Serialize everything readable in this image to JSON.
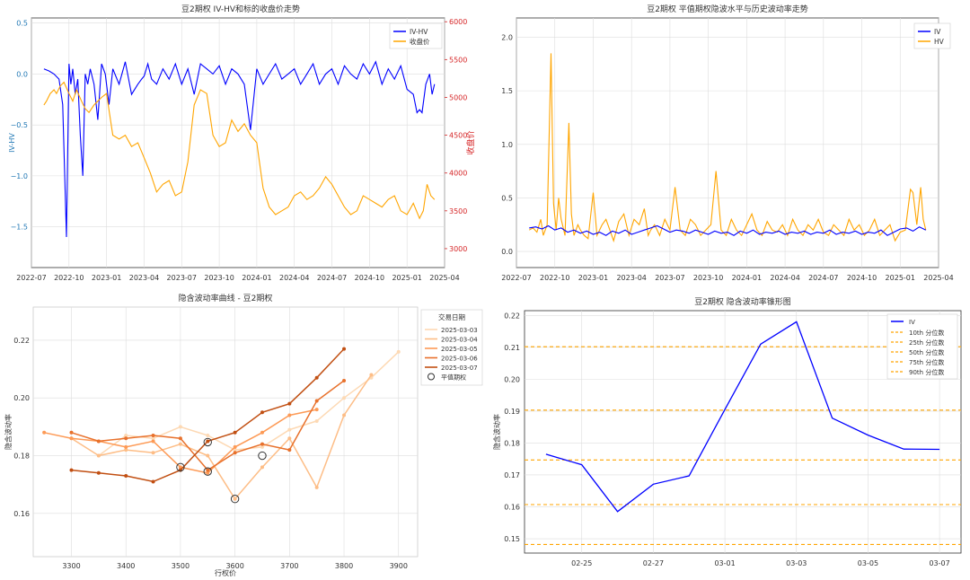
{
  "chart_data": [
    {
      "id": "iv_hv_close",
      "type": "line",
      "title": "豆2期权 IV-HV和标的收盘价走势",
      "ylabel_left": "IV-HV",
      "ylabel_right": "收盘价",
      "x_ticks": [
        "2022-07",
        "2022-10",
        "2023-01",
        "2023-04",
        "2023-07",
        "2023-10",
        "2024-01",
        "2024-04",
        "2024-07",
        "2024-10",
        "2025-01",
        "2025-04"
      ],
      "x_range": [
        0,
        33
      ],
      "y_left_ticks": [
        0.5,
        0.0,
        -0.5,
        -1.0,
        -1.5
      ],
      "y_left_tick_labels": [
        "0.5",
        "0.0",
        "−0.5",
        "−1.0",
        "−1.5"
      ],
      "y_left_range": [
        -1.9,
        0.55
      ],
      "y_right_ticks": [
        6000,
        5500,
        5000,
        4500,
        4000,
        3500,
        3000
      ],
      "y_right_tick_labels": [
        "6000",
        "5500",
        "5000",
        "4500",
        "4000",
        "3500",
        "3000"
      ],
      "y_right_range": [
        2750,
        6050
      ],
      "colors": {
        "left": "#1f77b4",
        "right": "#d62728"
      },
      "legend": [
        {
          "label": "IV-HV",
          "color": "#0000ff"
        },
        {
          "label": "收盘价",
          "color": "#ffa500"
        }
      ],
      "series": [
        {
          "name": "IV-HV",
          "axis": "left",
          "color": "#0000ff",
          "x": [
            1.0,
            1.4,
            1.8,
            2.2,
            2.5,
            2.8,
            3.0,
            3.15,
            3.3,
            3.5,
            3.7,
            3.9,
            4.1,
            4.3,
            4.5,
            4.7,
            5.0,
            5.3,
            5.6,
            5.9,
            6.2,
            6.5,
            7.0,
            7.5,
            8.0,
            8.5,
            8.8,
            9.0,
            9.3,
            9.6,
            10.0,
            10.5,
            11.0,
            11.5,
            12.0,
            12.5,
            13.0,
            13.5,
            14.0,
            14.5,
            15.0,
            15.5,
            16.0,
            16.5,
            17.0,
            17.5,
            18.0,
            18.5,
            19.0,
            19.5,
            20.0,
            20.5,
            21.0,
            21.5,
            22.0,
            22.5,
            23.0,
            23.5,
            24.0,
            24.5,
            25.0,
            25.5,
            26.0,
            26.5,
            27.0,
            27.5,
            28.0,
            28.5,
            29.0,
            29.5,
            30.0,
            30.5,
            30.8,
            31.0,
            31.2,
            31.5,
            31.8,
            32.0,
            32.2
          ],
          "y": [
            0.05,
            0.03,
            0.0,
            -0.05,
            -0.3,
            -1.6,
            0.1,
            -0.1,
            0.05,
            -0.2,
            -0.05,
            -0.6,
            -1.0,
            0.0,
            -0.1,
            0.05,
            -0.1,
            -0.45,
            0.1,
            0.0,
            -0.3,
            0.05,
            -0.1,
            0.12,
            -0.2,
            -0.1,
            -0.05,
            -0.02,
            0.1,
            -0.05,
            -0.1,
            0.05,
            -0.05,
            0.1,
            -0.1,
            0.05,
            -0.2,
            0.1,
            0.05,
            0.0,
            0.08,
            -0.1,
            0.05,
            0.0,
            -0.1,
            -0.55,
            0.05,
            -0.1,
            0.0,
            0.1,
            -0.05,
            0.0,
            0.05,
            -0.1,
            0.0,
            0.1,
            -0.1,
            0.0,
            0.05,
            -0.1,
            0.08,
            0.0,
            -0.05,
            0.1,
            0.0,
            0.12,
            -0.1,
            0.05,
            -0.05,
            0.08,
            -0.15,
            -0.2,
            -0.38,
            -0.35,
            -0.38,
            -0.1,
            0.0,
            -0.2,
            -0.1
          ]
        },
        {
          "name": "收盘价",
          "axis": "right",
          "color": "#ffa500",
          "x": [
            1.0,
            1.2,
            1.5,
            1.8,
            2.0,
            2.3,
            2.6,
            3.0,
            3.3,
            3.6,
            4.0,
            4.3,
            4.6,
            5.0,
            5.3,
            5.6,
            6.0,
            6.5,
            7.0,
            7.5,
            8.0,
            8.5,
            9.0,
            9.5,
            10.0,
            10.5,
            11.0,
            11.5,
            12.0,
            12.5,
            13.0,
            13.5,
            14.0,
            14.5,
            15.0,
            15.5,
            16.0,
            16.5,
            17.0,
            17.5,
            18.0,
            18.5,
            19.0,
            19.5,
            20.0,
            20.5,
            21.0,
            21.5,
            22.0,
            22.5,
            23.0,
            23.5,
            24.0,
            24.5,
            25.0,
            25.5,
            26.0,
            26.5,
            27.0,
            27.5,
            28.0,
            28.5,
            29.0,
            29.5,
            30.0,
            30.5,
            31.0,
            31.3,
            31.6,
            31.9,
            32.2
          ],
          "y": [
            4900,
            4950,
            5050,
            5100,
            5050,
            5150,
            5200,
            5050,
            4950,
            5100,
            4950,
            4850,
            4800,
            4900,
            4950,
            5000,
            5050,
            4500,
            4450,
            4500,
            4350,
            4400,
            4200,
            4000,
            3750,
            3850,
            3900,
            3700,
            3750,
            4150,
            4900,
            5100,
            5050,
            4500,
            4350,
            4400,
            4700,
            4550,
            4650,
            4500,
            4400,
            3800,
            3550,
            3450,
            3500,
            3550,
            3700,
            3750,
            3650,
            3700,
            3800,
            3950,
            3850,
            3700,
            3550,
            3450,
            3500,
            3700,
            3650,
            3600,
            3550,
            3650,
            3700,
            3500,
            3450,
            3600,
            3400,
            3500,
            3850,
            3700,
            3650
          ]
        }
      ]
    },
    {
      "id": "iv_hv_trend",
      "type": "line",
      "title": "豆2期权 平值期权隐波水平与历史波动率走势",
      "x_ticks": [
        "2022-07",
        "2022-10",
        "2023-01",
        "2023-04",
        "2023-07",
        "2023-10",
        "2024-01",
        "2024-04",
        "2024-07",
        "2024-10",
        "2025-01",
        "2025-04"
      ],
      "x_range": [
        0,
        33
      ],
      "y_ticks": [
        2.0,
        1.5,
        1.0,
        0.5,
        0.0
      ],
      "y_tick_labels": [
        "2.0",
        "1.5",
        "1.0",
        "0.5",
        "0.0"
      ],
      "y_range": [
        -0.15,
        2.18
      ],
      "legend": [
        {
          "label": "IV",
          "color": "#0000ff"
        },
        {
          "label": "HV",
          "color": "#ffa500"
        }
      ],
      "series": [
        {
          "name": "HV",
          "color": "#ffa500",
          "x": [
            1.0,
            1.3,
            1.6,
            1.9,
            2.1,
            2.4,
            2.7,
            2.9,
            3.1,
            3.3,
            3.5,
            3.8,
            4.1,
            4.3,
            4.5,
            4.8,
            5.0,
            5.3,
            5.6,
            6.0,
            6.3,
            6.7,
            7.0,
            7.3,
            7.6,
            8.0,
            8.4,
            8.8,
            9.2,
            9.6,
            10.0,
            10.3,
            10.5,
            10.8,
            11.2,
            11.6,
            12.0,
            12.4,
            12.8,
            13.2,
            13.6,
            14.0,
            14.4,
            14.8,
            15.2,
            15.6,
            16.0,
            16.4,
            16.8,
            17.2,
            17.6,
            18.0,
            18.4,
            18.8,
            19.2,
            19.6,
            20.0,
            20.4,
            20.8,
            21.2,
            21.6,
            22.0,
            22.4,
            22.8,
            23.2,
            23.6,
            24.0,
            24.4,
            24.8,
            25.2,
            25.6,
            26.0,
            26.4,
            26.8,
            27.2,
            27.6,
            28.0,
            28.4,
            28.8,
            29.2,
            29.6,
            30.0,
            30.4,
            30.8,
            31.0,
            31.3,
            31.6,
            31.8,
            32.0
          ],
          "y": [
            0.2,
            0.22,
            0.18,
            0.3,
            0.15,
            0.25,
            1.85,
            0.45,
            0.2,
            0.5,
            0.3,
            0.15,
            1.2,
            0.35,
            0.15,
            0.25,
            0.2,
            0.15,
            0.12,
            0.55,
            0.15,
            0.25,
            0.3,
            0.2,
            0.1,
            0.28,
            0.35,
            0.15,
            0.3,
            0.25,
            0.4,
            0.15,
            0.2,
            0.25,
            0.15,
            0.3,
            0.2,
            0.6,
            0.2,
            0.15,
            0.3,
            0.25,
            0.15,
            0.2,
            0.25,
            0.75,
            0.2,
            0.15,
            0.3,
            0.2,
            0.15,
            0.25,
            0.35,
            0.2,
            0.15,
            0.28,
            0.2,
            0.18,
            0.25,
            0.15,
            0.3,
            0.2,
            0.15,
            0.25,
            0.2,
            0.3,
            0.18,
            0.15,
            0.25,
            0.2,
            0.15,
            0.3,
            0.2,
            0.25,
            0.15,
            0.2,
            0.3,
            0.15,
            0.2,
            0.25,
            0.1,
            0.18,
            0.2,
            0.58,
            0.55,
            0.25,
            0.6,
            0.3,
            0.2
          ]
        },
        {
          "name": "IV",
          "color": "#0000ff",
          "x": [
            1.0,
            1.5,
            2.0,
            2.5,
            3.0,
            3.5,
            4.0,
            4.5,
            5.0,
            5.5,
            6.0,
            6.5,
            7.0,
            7.5,
            8.0,
            8.5,
            9.0,
            9.5,
            10.0,
            10.5,
            11.0,
            11.5,
            12.0,
            12.5,
            13.0,
            13.5,
            14.0,
            14.5,
            15.0,
            15.5,
            16.0,
            16.5,
            17.0,
            17.5,
            18.0,
            18.5,
            19.0,
            19.5,
            20.0,
            20.5,
            21.0,
            21.5,
            22.0,
            22.5,
            23.0,
            23.5,
            24.0,
            24.5,
            25.0,
            25.5,
            26.0,
            26.5,
            27.0,
            27.5,
            28.0,
            28.5,
            29.0,
            29.5,
            30.0,
            30.5,
            31.0,
            31.5,
            32.0
          ],
          "y": [
            0.22,
            0.23,
            0.21,
            0.24,
            0.2,
            0.22,
            0.18,
            0.2,
            0.17,
            0.19,
            0.16,
            0.18,
            0.15,
            0.19,
            0.17,
            0.2,
            0.16,
            0.18,
            0.2,
            0.22,
            0.24,
            0.21,
            0.18,
            0.2,
            0.19,
            0.17,
            0.2,
            0.18,
            0.16,
            0.19,
            0.17,
            0.18,
            0.15,
            0.19,
            0.17,
            0.2,
            0.16,
            0.18,
            0.17,
            0.19,
            0.16,
            0.18,
            0.17,
            0.19,
            0.16,
            0.18,
            0.17,
            0.2,
            0.16,
            0.18,
            0.17,
            0.19,
            0.16,
            0.18,
            0.17,
            0.2,
            0.15,
            0.18,
            0.21,
            0.22,
            0.19,
            0.23,
            0.2
          ]
        }
      ]
    },
    {
      "id": "smile",
      "type": "line",
      "title": "隐含波动率曲线 - 豆2期权",
      "xlabel": "行权价",
      "ylabel": "隐含波动率",
      "x_ticks": [
        3300,
        3400,
        3500,
        3600,
        3700,
        3800,
        3900
      ],
      "x_tick_labels": [
        "3300",
        "3400",
        "3500",
        "3600",
        "3700",
        "3800",
        "3900"
      ],
      "x_range": [
        3230,
        3935
      ],
      "y_ticks": [
        0.22,
        0.2,
        0.18,
        0.16
      ],
      "y_tick_labels": [
        "0.22",
        "0.20",
        "0.18",
        "0.16"
      ],
      "y_range": [
        0.145,
        0.2315
      ],
      "legend_title": "交易日期",
      "legend_atm_label": "平值期权",
      "series": [
        {
          "name": "2025-03-03",
          "color": "#fdd9b4",
          "x": [
            3350,
            3400,
            3450,
            3500,
            3550,
            3600,
            3650,
            3700,
            3750,
            3800,
            3850,
            3900
          ],
          "y": [
            0.18,
            0.187,
            0.186,
            0.19,
            0.187,
            0.182,
            0.183,
            0.189,
            0.192,
            0.2,
            0.207,
            0.216
          ],
          "atm_x": 3600,
          "atm_y": 0.165
        },
        {
          "name": "2025-03-04",
          "color": "#fdbd86",
          "x": [
            3300,
            3350,
            3400,
            3450,
            3500,
            3550,
            3600,
            3650,
            3700,
            3750,
            3800,
            3850
          ],
          "y": [
            0.186,
            0.18,
            0.182,
            0.181,
            0.184,
            0.18,
            0.165,
            0.176,
            0.186,
            0.169,
            0.194,
            0.208
          ],
          "atm_x": 3650,
          "atm_y": 0.18
        },
        {
          "name": "2025-03-05",
          "color": "#fd9a56",
          "x": [
            3250,
            3300,
            3350,
            3400,
            3450,
            3500,
            3550,
            3600,
            3650,
            3700,
            3750
          ],
          "y": [
            0.188,
            0.186,
            0.185,
            0.183,
            0.185,
            0.176,
            0.174,
            0.183,
            0.188,
            0.194,
            0.196
          ],
          "atm_x": 3500,
          "atm_y": 0.176
        },
        {
          "name": "2025-03-06",
          "color": "#e8712c",
          "x": [
            3300,
            3350,
            3400,
            3450,
            3500,
            3550,
            3600,
            3650,
            3700,
            3750,
            3800
          ],
          "y": [
            0.188,
            0.185,
            0.186,
            0.187,
            0.186,
            0.175,
            0.181,
            0.184,
            0.182,
            0.199,
            0.206
          ],
          "atm_x": 3550,
          "atm_y": 0.1745
        },
        {
          "name": "2025-03-07",
          "color": "#c14f12",
          "x": [
            3300,
            3350,
            3400,
            3450,
            3500,
            3550,
            3600,
            3650,
            3700,
            3750,
            3800
          ],
          "y": [
            0.175,
            0.174,
            0.173,
            0.171,
            0.175,
            0.185,
            0.188,
            0.195,
            0.198,
            0.207,
            0.217
          ],
          "atm_x": 3550,
          "atm_y": 0.1847
        }
      ]
    },
    {
      "id": "iv_cone",
      "type": "line",
      "title": "豆2期权 隐含波动率锥形图",
      "ylabel": "隐含波动率",
      "x_ticks": [
        1,
        3,
        5,
        7,
        9,
        11
      ],
      "x_tick_labels": [
        "02-25",
        "02-27",
        "03-01",
        "03-03",
        "03-05",
        "03-07"
      ],
      "x_range": [
        -0.6,
        11.6
      ],
      "y_ticks": [
        0.22,
        0.21,
        0.2,
        0.19,
        0.18,
        0.17,
        0.16,
        0.15
      ],
      "y_tick_labels": [
        "0.22",
        "0.21",
        "0.20",
        "0.19",
        "0.18",
        "0.17",
        "0.16",
        "0.15"
      ],
      "y_range": [
        0.1455,
        0.2215
      ],
      "series": [
        {
          "name": "IV",
          "color": "#0000ff",
          "x": [
            0,
            1,
            2,
            3,
            4,
            5,
            6,
            7,
            8,
            9,
            10,
            11
          ],
          "y": [
            0.1765,
            0.1732,
            0.1585,
            0.1671,
            0.1697,
            0.1905,
            0.211,
            0.218,
            0.1878,
            0.1825,
            0.1781,
            0.178
          ]
        }
      ],
      "quantiles": [
        {
          "label": "10th 分位数",
          "value": 0.1482
        },
        {
          "label": "25th 分位数",
          "value": 0.1607
        },
        {
          "label": "50th 分位数",
          "value": 0.1747
        },
        {
          "label": "75th 分位数",
          "value": 0.1903
        },
        {
          "label": "90th 分位数",
          "value": 0.2102
        }
      ],
      "quantile_color": "#ffa500"
    }
  ]
}
